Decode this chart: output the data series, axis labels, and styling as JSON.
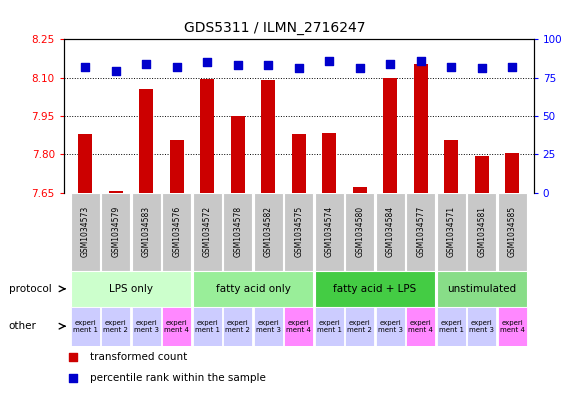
{
  "title": "GDS5311 / ILMN_2716247",
  "samples": [
    "GSM1034573",
    "GSM1034579",
    "GSM1034583",
    "GSM1034576",
    "GSM1034572",
    "GSM1034578",
    "GSM1034582",
    "GSM1034575",
    "GSM1034574",
    "GSM1034580",
    "GSM1034584",
    "GSM1034577",
    "GSM1034571",
    "GSM1034581",
    "GSM1034585"
  ],
  "transformed_count": [
    7.88,
    7.655,
    8.055,
    7.855,
    8.095,
    7.95,
    8.09,
    7.88,
    7.885,
    7.672,
    8.1,
    8.155,
    7.855,
    7.795,
    7.805
  ],
  "percentile_rank": [
    82,
    79,
    84,
    82,
    85,
    83,
    83,
    81,
    86,
    81,
    84,
    86,
    82,
    81,
    82
  ],
  "ylim_left": [
    7.65,
    8.25
  ],
  "ylim_right": [
    0,
    100
  ],
  "yticks_left": [
    7.65,
    7.8,
    7.95,
    8.1,
    8.25
  ],
  "yticks_right": [
    0,
    25,
    50,
    75,
    100
  ],
  "bar_color": "#cc0000",
  "dot_color": "#0000cc",
  "bar_width": 0.45,
  "dot_size": 35,
  "protocols": [
    {
      "label": "LPS only",
      "start": 0,
      "end": 4,
      "color": "#ccffcc"
    },
    {
      "label": "fatty acid only",
      "start": 4,
      "end": 8,
      "color": "#99ee99"
    },
    {
      "label": "fatty acid + LPS",
      "start": 8,
      "end": 12,
      "color": "#44cc44"
    },
    {
      "label": "unstimulated",
      "start": 12,
      "end": 15,
      "color": "#88dd88"
    }
  ],
  "other_colors": [
    "#ccccff",
    "#ccccff",
    "#ccccff",
    "#ff88ff",
    "#ccccff",
    "#ccccff",
    "#ccccff",
    "#ff88ff",
    "#ccccff",
    "#ccccff",
    "#ccccff",
    "#ff88ff",
    "#ccccff",
    "#ccccff",
    "#ff88ff"
  ],
  "other_labels": [
    "experi\nment 1",
    "experi\nment 2",
    "experi\nment 3",
    "experi\nment 4",
    "experi\nment 1",
    "experi\nment 2",
    "experi\nment 3",
    "experi\nment 4",
    "experi\nment 1",
    "experi\nment 2",
    "experi\nment 3",
    "experi\nment 4",
    "experi\nment 1",
    "experi\nment 3",
    "experi\nment 4"
  ],
  "legend_bar_label": "transformed count",
  "legend_dot_label": "percentile rank within the sample",
  "background_color": "#ffffff",
  "title_fontsize": 10,
  "tick_fontsize": 7.5,
  "sample_fontsize": 5.5,
  "proto_fontsize": 7.5,
  "other_fontsize": 5.0,
  "legend_fontsize": 7.5
}
